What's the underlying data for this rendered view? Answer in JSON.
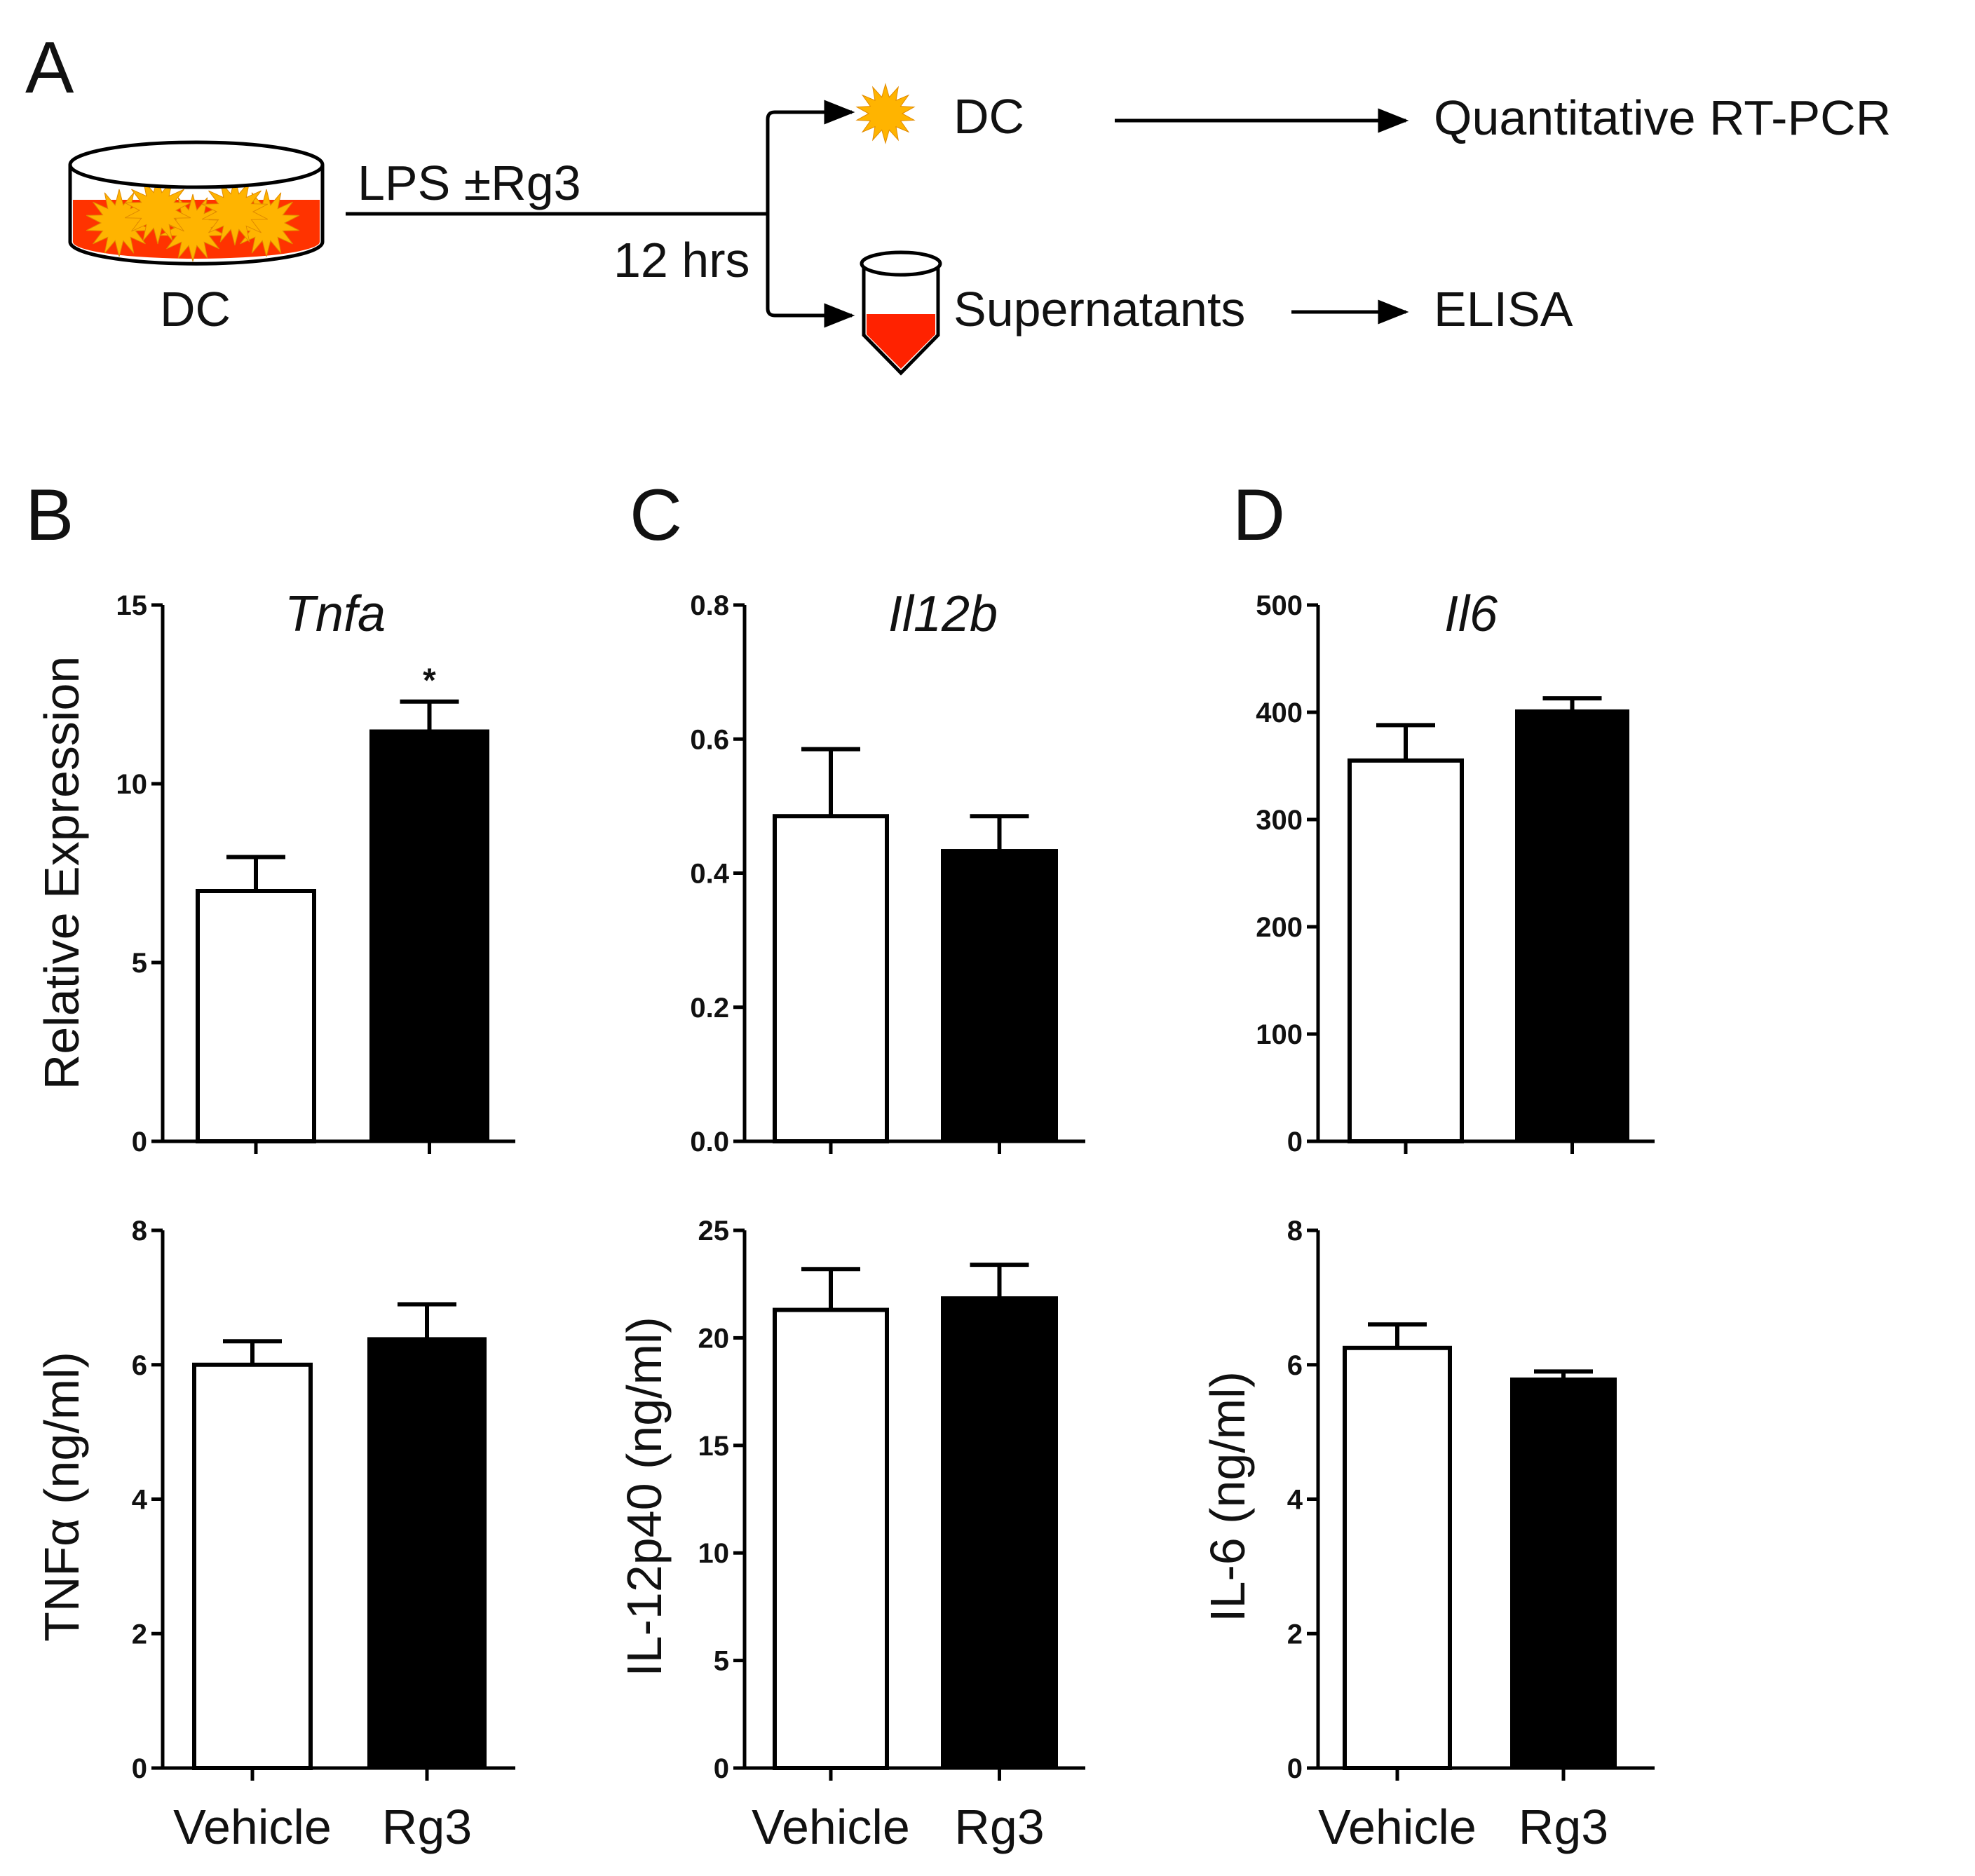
{
  "panel_letters": {
    "a": "A",
    "b": "B",
    "c": "C",
    "d": "D"
  },
  "schema": {
    "dish_label": "DC",
    "treatment": "LPS ±Rg3",
    "time": "12 hrs",
    "branch_top": "DC",
    "branch_top_assay": "Quantitative RT-PCR",
    "branch_bottom": "Supernatants",
    "branch_bottom_assay": "ELISA",
    "colors": {
      "dish_fill": "#ff3300",
      "cell": "#ffb400",
      "tube_fill": "#ff2200"
    }
  },
  "chart_data": [
    {
      "id": "tnfa-mrna",
      "type": "bar",
      "title": "Tnfa",
      "ylabel": "Relative Expression",
      "xlabel": "",
      "categories": [
        "Vehicle",
        "Rg3"
      ],
      "values": [
        7.0,
        11.5
      ],
      "errors": [
        0.95,
        0.8
      ],
      "fills": [
        "#ffffff",
        "#000000"
      ],
      "significance": [
        "",
        "*"
      ],
      "ylim": [
        0,
        15
      ],
      "yticks": [
        0,
        5,
        10,
        15
      ],
      "ytick_labels": [
        "0",
        "5",
        "10",
        "15"
      ],
      "show_category_labels": false
    },
    {
      "id": "il12b-mrna",
      "type": "bar",
      "title": "Il12b",
      "ylabel": "",
      "xlabel": "",
      "categories": [
        "Vehicle",
        "Rg3"
      ],
      "values": [
        0.485,
        0.435
      ],
      "errors": [
        0.1,
        0.05
      ],
      "fills": [
        "#ffffff",
        "#000000"
      ],
      "significance": [
        "",
        ""
      ],
      "ylim": [
        0,
        0.8
      ],
      "yticks": [
        0,
        0.2,
        0.4,
        0.6,
        0.8
      ],
      "ytick_labels": [
        "0.0",
        "0.2",
        "0.4",
        "0.6",
        "0.8"
      ],
      "show_category_labels": false
    },
    {
      "id": "il6-mrna",
      "type": "bar",
      "title": "Il6",
      "ylabel": "",
      "xlabel": "",
      "categories": [
        "Vehicle",
        "Rg3"
      ],
      "values": [
        355,
        402
      ],
      "errors": [
        33,
        11
      ],
      "fills": [
        "#ffffff",
        "#000000"
      ],
      "significance": [
        "",
        ""
      ],
      "ylim": [
        0,
        500
      ],
      "yticks": [
        0,
        100,
        200,
        300,
        400,
        500
      ],
      "ytick_labels": [
        "0",
        "100",
        "200",
        "300",
        "400",
        "500"
      ],
      "show_category_labels": false
    },
    {
      "id": "tnfa-protein",
      "type": "bar",
      "title": "",
      "ylabel": "TNFα (ng/ml)",
      "xlabel": "",
      "categories": [
        "Vehicle",
        "Rg3"
      ],
      "values": [
        6.0,
        6.4
      ],
      "errors": [
        0.35,
        0.5
      ],
      "fills": [
        "#ffffff",
        "#000000"
      ],
      "significance": [
        "",
        ""
      ],
      "ylim": [
        0,
        8
      ],
      "yticks": [
        0,
        2,
        4,
        6,
        8
      ],
      "ytick_labels": [
        "0",
        "2",
        "4",
        "6",
        "8"
      ],
      "show_category_labels": true
    },
    {
      "id": "il12p40-protein",
      "type": "bar",
      "title": "",
      "ylabel": "IL-12p40 (ng/ml)",
      "xlabel": "",
      "categories": [
        "Vehicle",
        "Rg3"
      ],
      "values": [
        21.3,
        21.9
      ],
      "errors": [
        1.9,
        1.5
      ],
      "fills": [
        "#ffffff",
        "#000000"
      ],
      "significance": [
        "",
        ""
      ],
      "ylim": [
        0,
        25
      ],
      "yticks": [
        0,
        5,
        10,
        15,
        20,
        25
      ],
      "ytick_labels": [
        "0",
        "5",
        "10",
        "15",
        "20",
        "25"
      ],
      "show_category_labels": true
    },
    {
      "id": "il6-protein",
      "type": "bar",
      "title": "",
      "ylabel": "IL-6 (ng/ml)",
      "xlabel": "",
      "categories": [
        "Vehicle",
        "Rg3"
      ],
      "values": [
        6.25,
        5.8
      ],
      "errors": [
        0.35,
        0.1
      ],
      "fills": [
        "#ffffff",
        "#000000"
      ],
      "significance": [
        "",
        ""
      ],
      "ylim": [
        0,
        8
      ],
      "yticks": [
        0,
        2,
        4,
        6,
        8
      ],
      "ytick_labels": [
        "0",
        "2",
        "4",
        "6",
        "8"
      ],
      "show_category_labels": true
    }
  ]
}
